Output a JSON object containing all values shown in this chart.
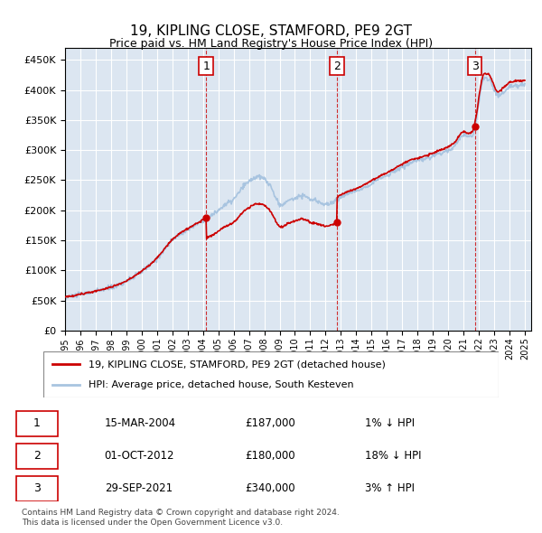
{
  "title": "19, KIPLING CLOSE, STAMFORD, PE9 2GT",
  "subtitle": "Price paid vs. HM Land Registry's House Price Index (HPI)",
  "ylabel_ticks": [
    "£0",
    "£50K",
    "£100K",
    "£150K",
    "£200K",
    "£250K",
    "£300K",
    "£350K",
    "£400K",
    "£450K"
  ],
  "ylim": [
    0,
    470000
  ],
  "yticks": [
    0,
    50000,
    100000,
    150000,
    200000,
    250000,
    300000,
    350000,
    400000,
    450000
  ],
  "bg_color": "#dce6f1",
  "plot_bg": "#dce6f1",
  "grid_color": "#ffffff",
  "hpi_color": "#a8c4e0",
  "price_color": "#cc0000",
  "sales": [
    {
      "date": "2004-03-15",
      "price": 187000,
      "label": "1"
    },
    {
      "date": "2012-10-01",
      "price": 180000,
      "label": "2"
    },
    {
      "date": "2021-09-29",
      "price": 340000,
      "label": "3"
    }
  ],
  "legend_line1": "19, KIPLING CLOSE, STAMFORD, PE9 2GT (detached house)",
  "legend_line2": "HPI: Average price, detached house, South Kesteven",
  "table_rows": [
    [
      "1",
      "15-MAR-2004",
      "£187,000",
      "1% ↓ HPI"
    ],
    [
      "2",
      "01-OCT-2012",
      "£180,000",
      "18% ↓ HPI"
    ],
    [
      "3",
      "29-SEP-2021",
      "£340,000",
      "3% ↑ HPI"
    ]
  ],
  "footer": "Contains HM Land Registry data © Crown copyright and database right 2024.\nThis data is licensed under the Open Government Licence v3.0.",
  "dashed_line_color": "#cc0000",
  "marker_box_color": "#cc0000"
}
